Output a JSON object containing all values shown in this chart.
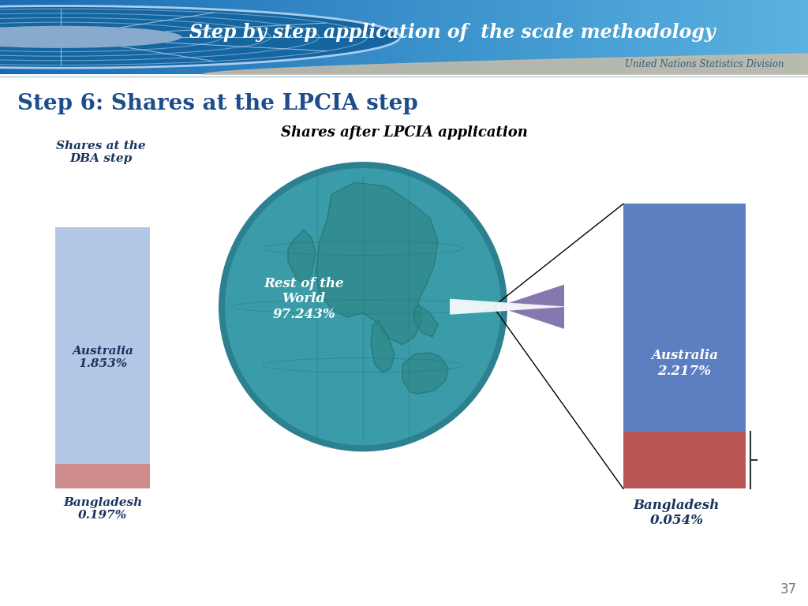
{
  "title_main": "Step by step application of  the scale methodology",
  "subtitle": "Step 6: Shares at the LPCIA step",
  "chart_title": "Shares after LPCIA application",
  "left_bar_title": "Shares at the\nDBA step",
  "australia_dba": 1.853,
  "bangladesh_dba": 0.197,
  "australia_lpcia": 2.217,
  "bangladesh_lpcia": 0.054,
  "rest_world": 97.243,
  "color_australia_left": "#b3c7e6",
  "color_bangladesh_left": "#cd8b8b",
  "color_australia_right": "#5b7fc0",
  "color_bangladesh_right": "#b85555",
  "color_globe_fill": "#3a9ca8",
  "color_globe_edge": "#2d8090",
  "color_globe_continent": "#2e8888",
  "color_wedge_purple": "#7060a0",
  "header_color_left": "#1a6aaa",
  "header_color_right": "#5ab4e8",
  "sand_color": "#c8bda8",
  "page_bg": "#ffffff",
  "page_number": "37",
  "text_dark_blue": "#1a3560",
  "text_step6": "#1e4d8c"
}
